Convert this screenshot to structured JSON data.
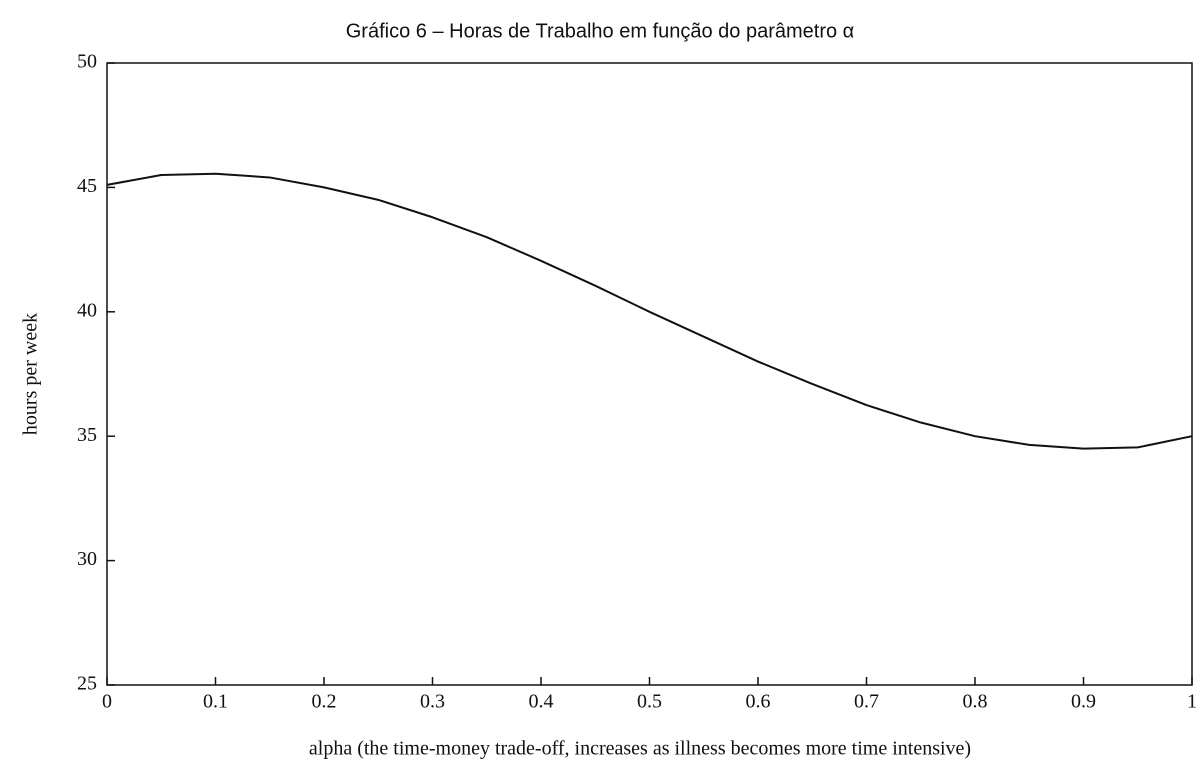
{
  "chart_data": {
    "type": "line",
    "title": "Gráfico 6 – Horas de Trabalho em função do parâmetro α",
    "x_label": "alpha (the time-money trade-off, increases as illness becomes more time intensive)",
    "y_label": "hours per week",
    "x": [
      0,
      0.05,
      0.1,
      0.15,
      0.2,
      0.25,
      0.3,
      0.35,
      0.4,
      0.45,
      0.5,
      0.55,
      0.6,
      0.65,
      0.7,
      0.75,
      0.8,
      0.85,
      0.9,
      0.95,
      1
    ],
    "series": [
      {
        "color": "#111111",
        "values": [
          45.1,
          45.5,
          45.55,
          45.4,
          45.0,
          44.5,
          43.8,
          43.0,
          42.05,
          41.05,
          40.0,
          39.0,
          38.0,
          37.1,
          36.25,
          35.55,
          35.0,
          34.65,
          34.5,
          34.55,
          35.0
        ]
      }
    ],
    "xlim": [
      0,
      1
    ],
    "xticks": [
      0,
      0.1,
      0.2,
      0.3,
      0.4,
      0.5,
      0.6,
      0.7,
      0.8,
      0.9,
      1
    ],
    "ylim": [
      25,
      50
    ],
    "yticks": [
      25,
      30,
      35,
      40,
      45,
      50
    ]
  }
}
